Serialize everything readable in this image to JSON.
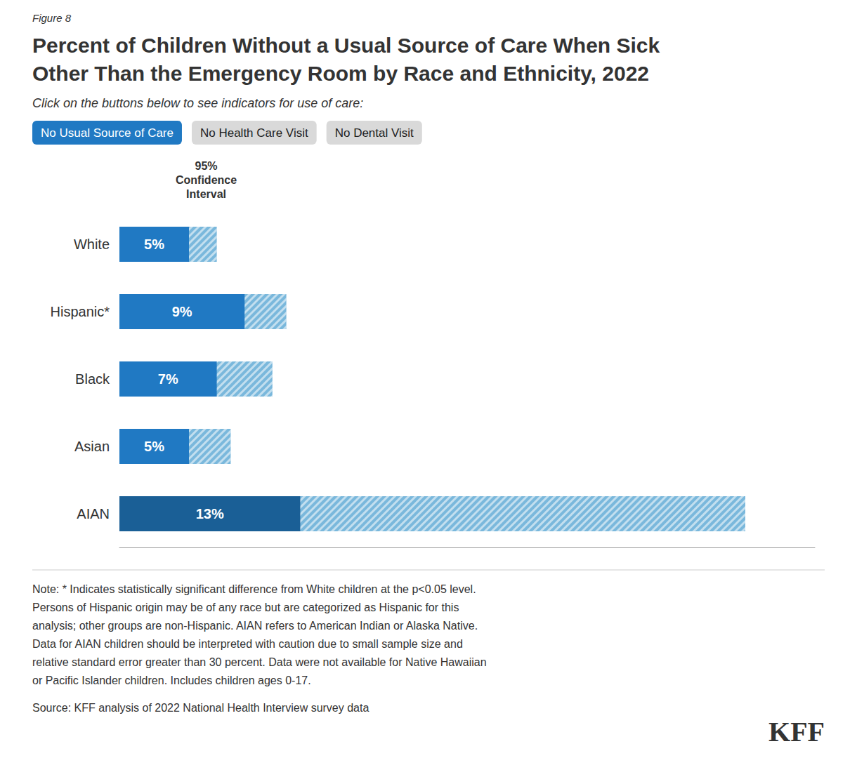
{
  "chart_data": {
    "type": "bar",
    "orientation": "horizontal",
    "title": "Percent of Children Without a Usual Source of Care When Sick\nOther Than the Emergency Room by Race and Ethnicity, 2022",
    "subtitle": "Click on the buttons below to see indicators for use of care:",
    "categories": [
      "White",
      "Hispanic*",
      "Black",
      "Asian",
      "AIAN"
    ],
    "series": [
      {
        "values": [
          5,
          9,
          7,
          5,
          13
        ],
        "value_labels": [
          "5%",
          "9%",
          "7%",
          "5%",
          "13%"
        ],
        "colors": [
          "#2079c3",
          "#2079c3",
          "#2079c3",
          "#2079c3",
          "#1a5f96"
        ]
      },
      {
        "values": [
          7,
          12,
          11,
          8,
          45
        ],
        "color": "#7ab8dc"
      }
    ],
    "xlim": [
      0,
      50
    ],
    "xticks": [],
    "tick_labels": "y",
    "grid": false,
    "stacked": false,
    "data_labels": true,
    "annotations": [
      {
        "text": "Figure 8"
      },
      {
        "text": "No Usual Source of Care",
        "color": "#2079c3"
      },
      {
        "text": "No Health Care Visit",
        "color": "#d9d9d9"
      },
      {
        "text": "No Dental Visit",
        "color": "#d9d9d9"
      },
      {
        "text": "95%\nConfidence\nInterval"
      },
      {
        "text": "Note: * Indicates statistically significant difference from White children at the p<0.05 level.\nPersons of Hispanic origin may be of any race but are categorized as Hispanic for this\nanalysis; other groups are non-Hispanic. AIAN refers to American Indian or Alaska Native.\nData for AIAN children should be interpreted with caution due to small sample size and\nrelative standard error greater than 30 percent. Data were not available for Native Hawaiian\nor Pacific Islander children. Includes children ages 0-17."
      },
      {
        "text": "Source: KFF analysis of 2022 National Health Interview survey data"
      },
      {
        "text": "KFF"
      }
    ]
  }
}
